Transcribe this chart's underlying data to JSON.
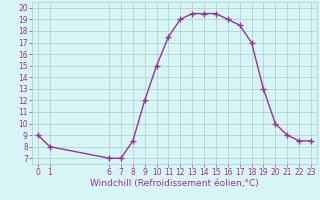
{
  "x": [
    0,
    1,
    6,
    7,
    8,
    9,
    10,
    11,
    12,
    13,
    14,
    15,
    16,
    17,
    18,
    19,
    20,
    21,
    22,
    23
  ],
  "y": [
    9,
    8,
    7,
    7,
    8.5,
    12,
    15,
    17.5,
    19,
    19.5,
    19.5,
    19.5,
    19,
    18.5,
    17,
    13,
    10,
    9,
    8.5,
    8.5
  ],
  "line_color": "#993399",
  "marker": "+",
  "marker_size": 4,
  "bg_color": "#d8f5f5",
  "grid_color": "#aacccc",
  "xlabel": "Windchill (Refroidissement éolien,°C)",
  "xlim": [
    -0.5,
    23.5
  ],
  "ylim": [
    6.5,
    20.5
  ],
  "xticks": [
    0,
    1,
    6,
    7,
    8,
    9,
    10,
    11,
    12,
    13,
    14,
    15,
    16,
    17,
    18,
    19,
    20,
    21,
    22,
    23
  ],
  "yticks": [
    7,
    8,
    9,
    10,
    11,
    12,
    13,
    14,
    15,
    16,
    17,
    18,
    19,
    20
  ],
  "tick_fontsize": 5.5,
  "label_fontsize": 6.5
}
